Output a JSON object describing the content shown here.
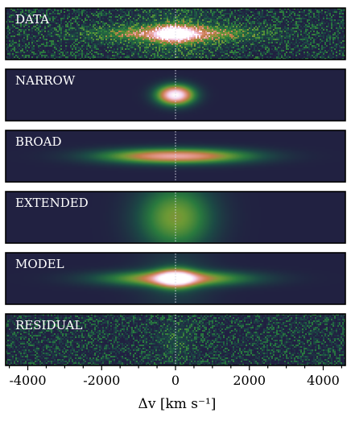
{
  "chart_data": {
    "type": "heatmap",
    "title": "",
    "xlabel": "Δv [km s⁻¹]",
    "ylabel": "",
    "xlim": [
      -4600,
      4600
    ],
    "x_ticks": [
      -4000,
      -2000,
      0,
      2000,
      4000
    ],
    "x_tick_labels": [
      "-4000",
      "-2000",
      "0",
      "2000",
      "4000"
    ],
    "minor_tick_step": 500,
    "reference_line_x": 0,
    "colors": {
      "background": "#212141",
      "outline": "#000000",
      "reference_line": "#d8d8e8",
      "ramp": [
        "#212141",
        "#1c4a45",
        "#2a7a3e",
        "#6e9a35",
        "#c47a48",
        "#e59a90",
        "#f4d2ee",
        "#ffffff"
      ]
    },
    "panels": [
      {
        "label": "DATA",
        "noise": 0.35,
        "components": [
          {
            "center": 0,
            "sigma_v": 380,
            "sigma_y": 0.12,
            "amp": 0.65
          },
          {
            "center": 0,
            "sigma_v": 1350,
            "sigma_y": 0.1,
            "amp": 0.55
          },
          {
            "center": 0,
            "sigma_v": 800,
            "sigma_y": 0.4,
            "amp": 0.12
          }
        ]
      },
      {
        "label": "NARROW",
        "noise": 0,
        "components": [
          {
            "center": 0,
            "sigma_v": 340,
            "sigma_y": 0.13,
            "amp": 1.0
          }
        ]
      },
      {
        "label": "BROAD",
        "noise": 0,
        "components": [
          {
            "center": 0,
            "sigma_v": 1350,
            "sigma_y": 0.1,
            "amp": 0.75
          }
        ]
      },
      {
        "label": "EXTENDED",
        "noise": 0,
        "components": [
          {
            "center": 0,
            "sigma_v": 700,
            "sigma_y": 0.45,
            "amp": 0.45
          }
        ]
      },
      {
        "label": "MODEL",
        "noise": 0,
        "components": [
          {
            "center": 0,
            "sigma_v": 340,
            "sigma_y": 0.12,
            "amp": 0.75
          },
          {
            "center": 0,
            "sigma_v": 1350,
            "sigma_y": 0.1,
            "amp": 0.6
          },
          {
            "center": 0,
            "sigma_v": 700,
            "sigma_y": 0.45,
            "amp": 0.12
          }
        ]
      },
      {
        "label": "RESIDUAL",
        "noise": 0.32,
        "components": [
          {
            "center": 0,
            "sigma_v": 300,
            "sigma_y": 0.25,
            "amp": 0.12
          }
        ]
      }
    ]
  }
}
